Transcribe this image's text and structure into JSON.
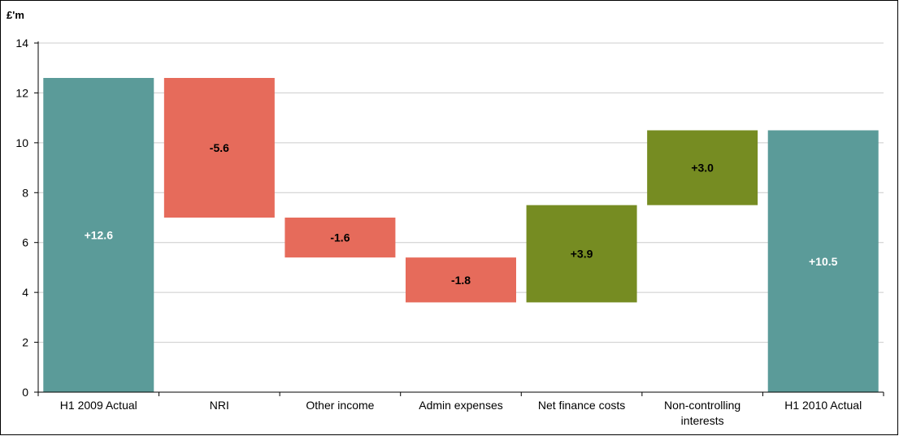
{
  "chart_data": {
    "type": "bar",
    "subtype": "waterfall",
    "unit_label": "£'m",
    "ylim": [
      0,
      14
    ],
    "yticks": [
      0,
      2,
      4,
      6,
      8,
      10,
      12,
      14
    ],
    "grid": true,
    "categories": [
      "H1 2009 Actual",
      "NRI",
      "Other income",
      "Admin expenses",
      "Net finance costs",
      "Non-controlling interests",
      "H1 2010 Actual"
    ],
    "category_lines": [
      [
        "H1 2009 Actual"
      ],
      [
        "NRI"
      ],
      [
        "Other income"
      ],
      [
        "Admin expenses"
      ],
      [
        "Net finance costs"
      ],
      [
        "Non-controlling",
        "interests"
      ],
      [
        "H1 2010 Actual"
      ]
    ],
    "bars": [
      {
        "start": 0,
        "end": 12.6,
        "label": "+12.6",
        "kind": "total"
      },
      {
        "start": 12.6,
        "end": 7.0,
        "label": "-5.6",
        "kind": "decrease"
      },
      {
        "start": 7.0,
        "end": 5.4,
        "label": "-1.6",
        "kind": "decrease"
      },
      {
        "start": 5.4,
        "end": 3.6,
        "label": "-1.8",
        "kind": "decrease"
      },
      {
        "start": 3.6,
        "end": 7.5,
        "label": "+3.9",
        "kind": "increase"
      },
      {
        "start": 7.5,
        "end": 10.5,
        "label": "+3.0",
        "kind": "increase"
      },
      {
        "start": 0,
        "end": 10.5,
        "label": "+10.5",
        "kind": "total"
      }
    ],
    "colors": {
      "total": "#5b9b99",
      "decrease": "#e66b5b",
      "increase": "#768c22",
      "grid": "#cccccc",
      "axis": "#000000"
    }
  }
}
